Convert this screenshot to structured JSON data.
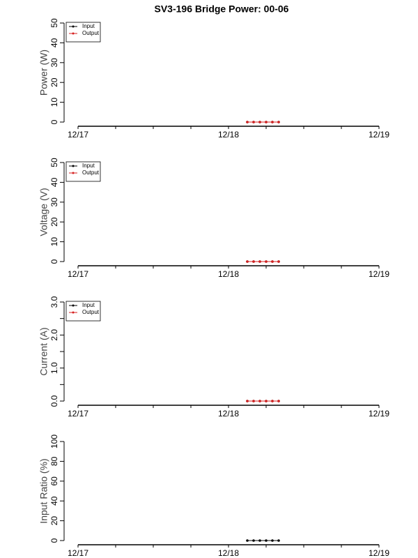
{
  "chart_data": [
    {
      "type": "line",
      "title": "SV3-196 Bridge Power: 00-06",
      "ylabel": "Power (W)",
      "x": [
        27,
        28,
        29,
        30,
        31,
        32
      ],
      "series": [
        {
          "name": "Input",
          "color": "#000000",
          "values": [
            0,
            0,
            0,
            0,
            0,
            0
          ]
        },
        {
          "name": "Output",
          "color": "#d62020",
          "values": [
            0,
            0,
            0,
            0,
            0,
            0
          ]
        }
      ],
      "xlim": [
        0,
        48
      ],
      "xticks": [
        {
          "value": 0,
          "label": "12/17"
        },
        {
          "value": 24,
          "label": "12/18"
        },
        {
          "value": 48,
          "label": "12/19"
        }
      ],
      "xminorticks": [
        6,
        12,
        18,
        30,
        36,
        42
      ],
      "ylim": [
        0,
        50
      ],
      "yticks": [
        0,
        10,
        20,
        30,
        40,
        50
      ],
      "legend": "top-left"
    },
    {
      "type": "line",
      "ylabel": "Voltage (V)",
      "x": [
        27,
        28,
        29,
        30,
        31,
        32
      ],
      "series": [
        {
          "name": "Input",
          "color": "#000000",
          "values": [
            0,
            0,
            0,
            0,
            0,
            0
          ]
        },
        {
          "name": "Output",
          "color": "#d62020",
          "values": [
            0,
            0,
            0,
            0,
            0,
            0
          ]
        }
      ],
      "xlim": [
        0,
        48
      ],
      "xticks": [
        {
          "value": 0,
          "label": "12/17"
        },
        {
          "value": 24,
          "label": "12/18"
        },
        {
          "value": 48,
          "label": "12/19"
        }
      ],
      "xminorticks": [
        6,
        12,
        18,
        30,
        36,
        42
      ],
      "ylim": [
        0,
        50
      ],
      "yticks": [
        0,
        10,
        20,
        30,
        40,
        50
      ],
      "legend": "top-left"
    },
    {
      "type": "line",
      "ylabel": "Current (A)",
      "x": [
        27,
        28,
        29,
        30,
        31,
        32
      ],
      "series": [
        {
          "name": "Input",
          "color": "#000000",
          "values": [
            0,
            0,
            0,
            0,
            0,
            0
          ]
        },
        {
          "name": "Output",
          "color": "#d62020",
          "values": [
            0,
            0,
            0,
            0,
            0,
            0
          ]
        }
      ],
      "xlim": [
        0,
        48
      ],
      "xticks": [
        {
          "value": 0,
          "label": "12/17"
        },
        {
          "value": 24,
          "label": "12/18"
        },
        {
          "value": 48,
          "label": "12/19"
        }
      ],
      "xminorticks": [
        6,
        12,
        18,
        30,
        36,
        42
      ],
      "ylim": [
        0,
        3
      ],
      "yticks": [
        {
          "value": 0,
          "label": "0.0"
        },
        {
          "value": 1,
          "label": "1.0"
        },
        {
          "value": 2,
          "label": "2.0"
        },
        {
          "value": 3,
          "label": "3.0"
        }
      ],
      "yminorticks": [
        0.5,
        1.5,
        2.5
      ],
      "legend": "top-left"
    },
    {
      "type": "line",
      "ylabel": "Input Ratio (%)",
      "x": [
        27,
        28,
        29,
        30,
        31,
        32
      ],
      "series": [
        {
          "color": "#000000",
          "values": [
            0,
            0,
            0,
            0,
            0,
            0
          ]
        }
      ],
      "xlim": [
        0,
        48
      ],
      "xticks": [
        {
          "value": 0,
          "label": "12/17"
        },
        {
          "value": 24,
          "label": "12/18"
        },
        {
          "value": 48,
          "label": "12/19"
        }
      ],
      "xminorticks": [
        6,
        12,
        18,
        30,
        36,
        42
      ],
      "ylim": [
        0,
        100
      ],
      "yticks": [
        0,
        20,
        40,
        60,
        80,
        100
      ]
    }
  ]
}
